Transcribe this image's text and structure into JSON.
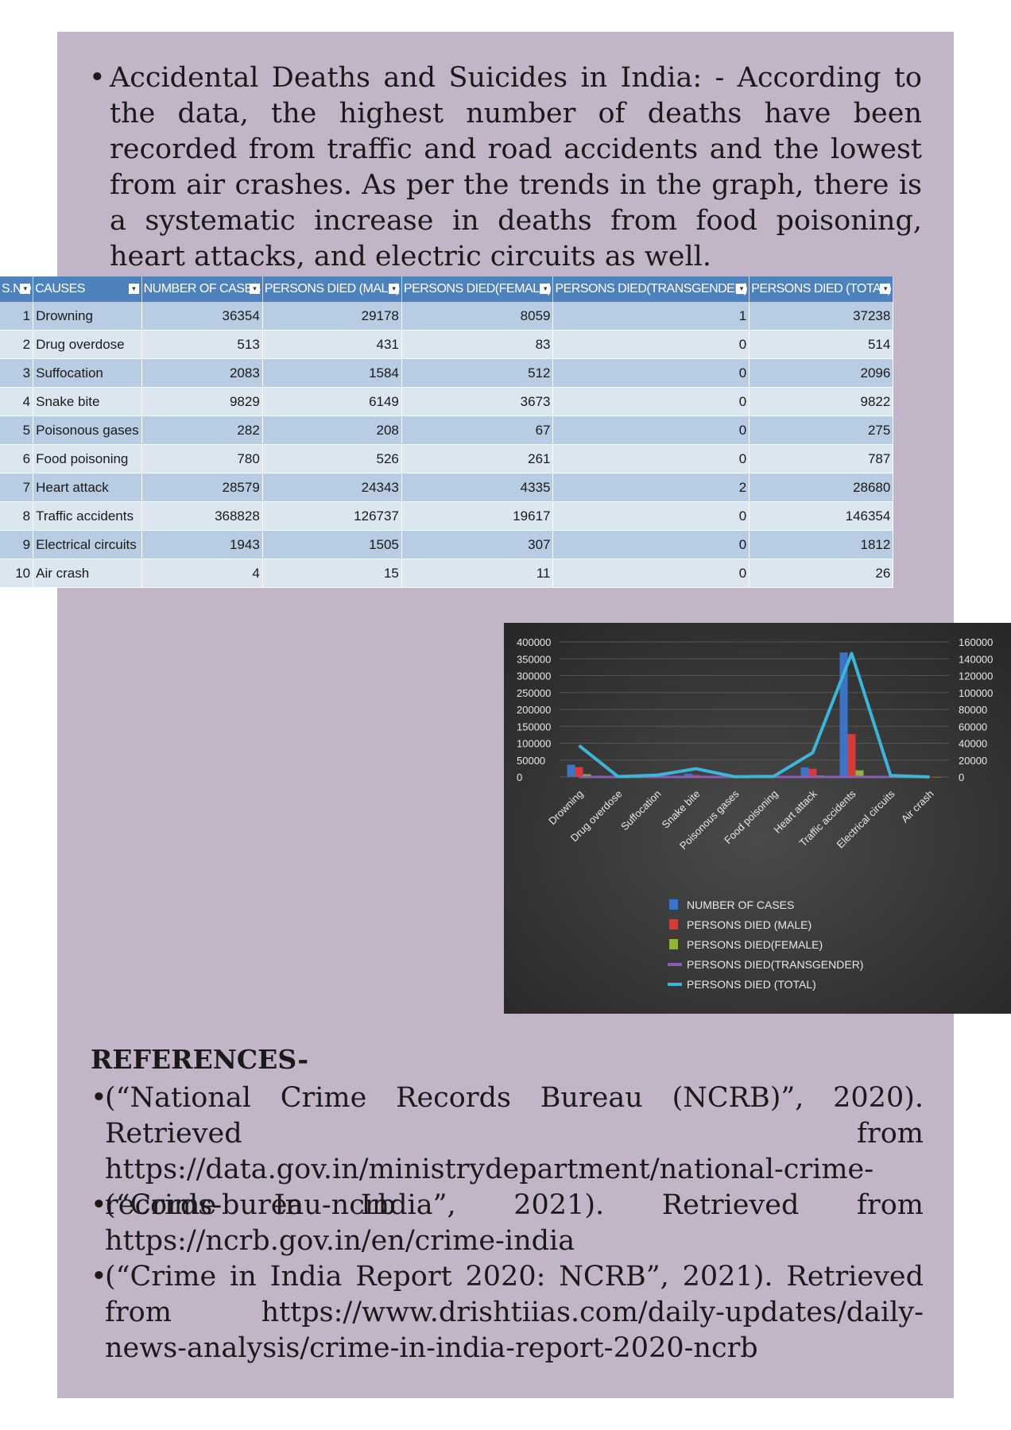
{
  "intro": {
    "bullet": "•",
    "text": "Accidental Deaths and Suicides in India: - According to the data, the highest number of deaths have been recorded from traffic and road accidents and the lowest from air crashes. As per the trends in the graph, there is a systematic increase in deaths from food poisoning, heart attacks, and electric circuits as well."
  },
  "table": {
    "headers": [
      "S.NO",
      "CAUSES",
      "NUMBER OF CASES",
      "PERSONS DIED (MALE)",
      "PERSONS DIED(FEMALE)",
      "PERSONS DIED(TRANSGENDER)",
      "PERSONS DIED (TOTAL)"
    ],
    "filter_glyph": "▾",
    "rows": [
      [
        "1",
        "Drowning",
        "36354",
        "29178",
        "8059",
        "1",
        "37238"
      ],
      [
        "2",
        "Drug overdose",
        "513",
        "431",
        "83",
        "0",
        "514"
      ],
      [
        "3",
        "Suffocation",
        "2083",
        "1584",
        "512",
        "0",
        "2096"
      ],
      [
        "4",
        "Snake bite",
        "9829",
        "6149",
        "3673",
        "0",
        "9822"
      ],
      [
        "5",
        "Poisonous gases",
        "282",
        "208",
        "67",
        "0",
        "275"
      ],
      [
        "6",
        "Food poisoning",
        "780",
        "526",
        "261",
        "0",
        "787"
      ],
      [
        "7",
        "Heart attack",
        "28579",
        "24343",
        "4335",
        "2",
        "28680"
      ],
      [
        "8",
        "Traffic accidents",
        "368828",
        "126737",
        "19617",
        "0",
        "146354"
      ],
      [
        "9",
        "Electrical circuits",
        "1943",
        "1505",
        "307",
        "0",
        "1812"
      ],
      [
        "10",
        "Air crash",
        "4",
        "15",
        "11",
        "0",
        "26"
      ]
    ]
  },
  "chart_data": {
    "type": "bar",
    "categories": [
      "Drowning",
      "Drug overdose",
      "Suffocation",
      "Snake bite",
      "Poisonous gases",
      "Food poisoning",
      "Heart attack",
      "Traffic accidents",
      "Electrical circuits",
      "Air crash"
    ],
    "left_axis_ticks": [
      "400000",
      "350000",
      "300000",
      "250000",
      "200000",
      "150000",
      "100000",
      "50000",
      "0"
    ],
    "right_axis_ticks": [
      "160000",
      "140000",
      "120000",
      "100000",
      "80000",
      "60000",
      "40000",
      "20000",
      "0"
    ],
    "ylim_left": [
      0,
      400000
    ],
    "ylim_right": [
      0,
      160000
    ],
    "series": [
      {
        "name": "NUMBER OF CASES",
        "kind": "bar",
        "axis": "left",
        "color": "#3a73c8",
        "values": [
          36354,
          513,
          2083,
          9829,
          282,
          780,
          28579,
          368828,
          1943,
          4
        ]
      },
      {
        "name": "PERSONS DIED (MALE)",
        "kind": "bar",
        "axis": "left",
        "color": "#d63b3b",
        "values": [
          29178,
          431,
          1584,
          6149,
          208,
          526,
          24343,
          126737,
          1505,
          15
        ]
      },
      {
        "name": "PERSONS DIED(FEMALE)",
        "kind": "bar",
        "axis": "left",
        "color": "#8fb33e",
        "values": [
          8059,
          83,
          512,
          3673,
          67,
          261,
          4335,
          19617,
          307,
          11
        ]
      },
      {
        "name": "PERSONS DIED(TRANSGENDER)",
        "kind": "line",
        "axis": "left",
        "color": "#8a5cb5",
        "values": [
          1,
          0,
          0,
          0,
          0,
          0,
          2,
          0,
          0,
          0
        ]
      },
      {
        "name": "PERSONS DIED (TOTAL)",
        "kind": "line",
        "axis": "right",
        "color": "#3db5d8",
        "values": [
          37238,
          514,
          2096,
          9822,
          275,
          787,
          28680,
          146354,
          1812,
          26
        ]
      }
    ],
    "legend_position": "bottom",
    "colors": {
      "background": "#3a3a3a",
      "gridline": "#555555",
      "text": "#e8e8e8"
    }
  },
  "references": {
    "title": "REFERENCES-",
    "items": [
      "(“National Crime Records Bureau (NCRB)”, 2020). Retrieved from https://data.gov.in/ministrydepartment/national-crime-records-bureau-ncrb",
      "(“Crime In India”, 2021). Retrieved from https://ncrb.gov.in/en/crime-india",
      "(“Crime in India Report 2020: NCRB”, 2021). Retrieved from https://www.drishtiias.com/daily-updates/daily-news-analysis/crime-in-india-report-2020-ncrb"
    ]
  }
}
